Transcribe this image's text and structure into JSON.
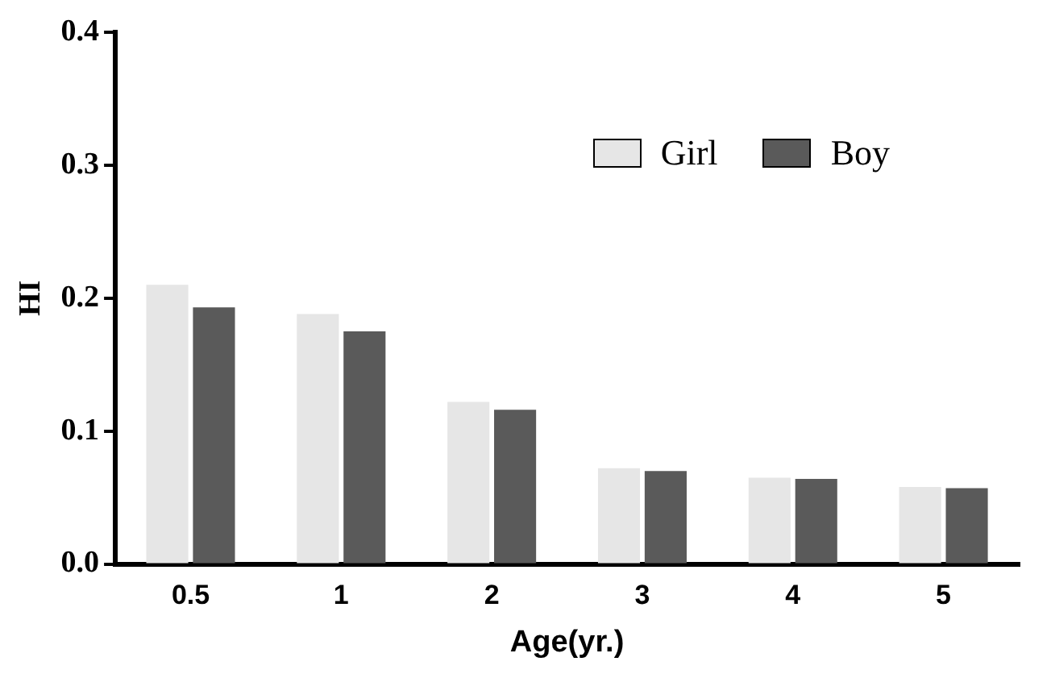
{
  "chart_data": {
    "type": "bar",
    "xlabel": "Age(yr.)",
    "ylabel": "HI",
    "categories": [
      "0.5",
      "1",
      "2",
      "3",
      "4",
      "5"
    ],
    "series": [
      {
        "name": "Girl",
        "color": "#e6e6e6",
        "values": [
          0.21,
          0.188,
          0.122,
          0.072,
          0.065,
          0.058
        ]
      },
      {
        "name": "Boy",
        "color": "#5a5a5a",
        "values": [
          0.193,
          0.175,
          0.116,
          0.07,
          0.064,
          0.057
        ]
      }
    ],
    "ylim": [
      0,
      0.4
    ],
    "yticks": [
      {
        "value": 0,
        "label": "0.0"
      },
      0.1,
      0.2,
      0.3,
      0.4
    ],
    "grid": false,
    "legend": "top right"
  }
}
